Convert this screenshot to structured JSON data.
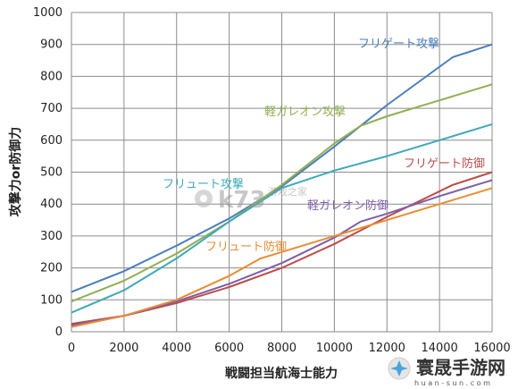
{
  "chart_data": {
    "type": "line",
    "xlabel": "戦闘担当航海士能力",
    "ylabel": "攻撃力or防御力",
    "xlim": [
      0,
      16000
    ],
    "ylim": [
      0,
      1000
    ],
    "x_ticks": [
      0,
      2000,
      4000,
      6000,
      8000,
      10000,
      12000,
      14000,
      16000
    ],
    "y_ticks": [
      0,
      100,
      200,
      300,
      400,
      500,
      600,
      700,
      800,
      900,
      1000
    ],
    "grid": true,
    "series": [
      {
        "name": "フリゲート攻撃",
        "color": "#4a7ebb",
        "x": [
          0,
          2000,
          4000,
          6000,
          8000,
          10000,
          12000,
          14500,
          16000
        ],
        "y": [
          125,
          190,
          270,
          355,
          455,
          580,
          710,
          860,
          900
        ]
      },
      {
        "name": "軽ガレオン攻撃",
        "color": "#8faf52",
        "x": [
          0,
          2000,
          4000,
          6000,
          8000,
          10000,
          11000,
          12000,
          14000,
          16000
        ],
        "y": [
          95,
          160,
          245,
          345,
          460,
          590,
          645,
          675,
          725,
          775
        ]
      },
      {
        "name": "フリュート攻撃",
        "color": "#3fa9b8",
        "x": [
          0,
          2000,
          4000,
          6000,
          8000,
          10000,
          12000,
          14000,
          16000
        ],
        "y": [
          60,
          130,
          230,
          345,
          450,
          505,
          550,
          600,
          650
        ]
      },
      {
        "name": "フリゲート防御",
        "color": "#be4b48",
        "x": [
          0,
          2000,
          4000,
          6000,
          8000,
          10000,
          12000,
          14500,
          16000
        ],
        "y": [
          25,
          50,
          90,
          140,
          200,
          275,
          360,
          460,
          500
        ]
      },
      {
        "name": "軽ガレオン防御",
        "color": "#7e5ea8",
        "x": [
          0,
          2000,
          4000,
          6000,
          8000,
          10000,
          11000,
          12000,
          14000,
          16000
        ],
        "y": [
          20,
          50,
          95,
          150,
          215,
          295,
          345,
          370,
          425,
          475
        ]
      },
      {
        "name": "フリュート防御",
        "color": "#e98c32",
        "x": [
          0,
          2000,
          4000,
          6000,
          7200,
          8000,
          10000,
          12000,
          14000,
          16000
        ],
        "y": [
          15,
          50,
          100,
          175,
          230,
          250,
          300,
          350,
          400,
          450
        ]
      }
    ]
  },
  "watermarks": {
    "center_text": "k73",
    "center_sub": "游戏之家",
    "corner_text": "寰晟手游网",
    "corner_sub": "h u a n - s u n . c o m"
  }
}
